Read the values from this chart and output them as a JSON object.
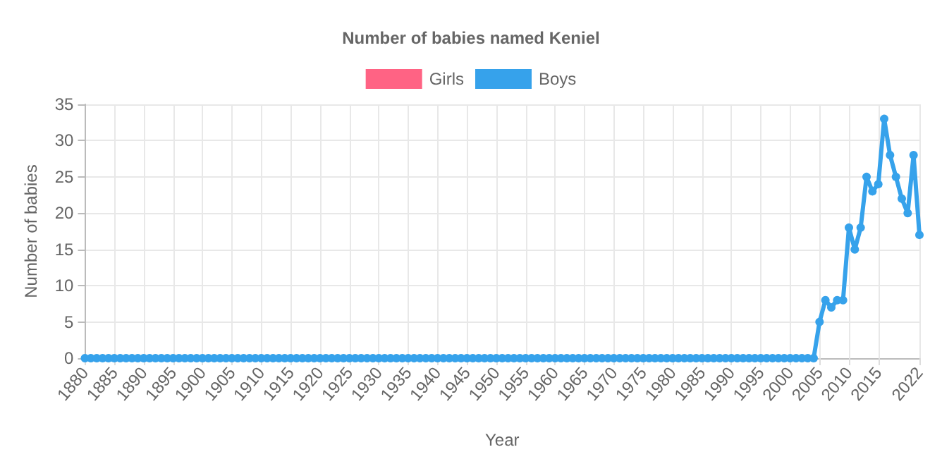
{
  "chart_data": {
    "type": "line",
    "title": "Number of babies named Keniel",
    "xlabel": "Year",
    "ylabel": "Number of babies",
    "categories": [
      "1880",
      null,
      null,
      null,
      null,
      "1885",
      null,
      null,
      null,
      null,
      "1890",
      null,
      null,
      null,
      null,
      "1895",
      null,
      null,
      null,
      null,
      "1900",
      null,
      null,
      null,
      null,
      "1905",
      null,
      null,
      null,
      null,
      "1910",
      null,
      null,
      null,
      null,
      "1915",
      null,
      null,
      null,
      null,
      "1920",
      null,
      null,
      null,
      null,
      "1925",
      null,
      null,
      null,
      null,
      "1930",
      null,
      null,
      null,
      null,
      "1935",
      null,
      null,
      null,
      null,
      "1940",
      null,
      null,
      null,
      null,
      "1945",
      null,
      null,
      null,
      null,
      "1950",
      null,
      null,
      null,
      null,
      "1955",
      null,
      null,
      null,
      null,
      "1960",
      null,
      null,
      null,
      null,
      "1965",
      null,
      null,
      null,
      null,
      "1970",
      null,
      null,
      null,
      null,
      "1975",
      null,
      null,
      null,
      null,
      "1980",
      null,
      null,
      null,
      null,
      "1985",
      null,
      null,
      null,
      null,
      "1990",
      null,
      null,
      null,
      null,
      "1995",
      null,
      null,
      null,
      null,
      "2000",
      null,
      null,
      null,
      null,
      "2005",
      null,
      null,
      null,
      null,
      "2010",
      null,
      null,
      null,
      null,
      "2015",
      null,
      null,
      null,
      null,
      null,
      null,
      "2022"
    ],
    "series": [
      {
        "name": "Girls",
        "color": "#ff6384",
        "values": [
          null,
          null,
          null,
          null,
          null,
          null,
          null,
          null,
          null,
          null,
          null,
          null,
          null,
          null,
          null,
          null,
          null,
          null,
          null,
          null,
          null,
          null,
          null,
          null,
          null,
          null,
          null,
          null,
          null,
          null,
          null,
          null,
          null,
          null,
          null,
          null,
          null,
          null,
          null,
          null,
          null,
          null,
          null,
          null,
          null,
          null,
          null,
          null,
          null,
          null,
          null,
          null,
          null,
          null,
          null,
          null,
          null,
          null,
          null,
          null,
          null,
          null,
          null,
          null,
          null,
          null,
          null,
          null,
          null,
          null,
          null,
          null,
          null,
          null,
          null,
          null,
          null,
          null,
          null,
          null,
          null,
          null,
          null,
          null,
          null,
          null,
          null,
          null,
          null,
          null,
          null,
          null,
          null,
          null,
          null,
          null,
          null,
          null,
          null,
          null,
          null,
          null,
          null,
          null,
          null,
          null,
          null,
          null,
          null,
          null,
          null,
          null,
          null,
          null,
          null,
          null,
          null,
          null,
          null,
          null,
          null,
          null,
          null,
          null,
          null,
          null,
          null,
          null,
          null,
          null,
          null,
          null,
          null,
          null,
          null,
          null,
          null,
          null,
          null,
          null,
          null,
          null,
          null
        ]
      },
      {
        "name": "Boys",
        "color": "#36a2eb",
        "values": [
          0,
          0,
          0,
          0,
          0,
          0,
          0,
          0,
          0,
          0,
          0,
          0,
          0,
          0,
          0,
          0,
          0,
          0,
          0,
          0,
          0,
          0,
          0,
          0,
          0,
          0,
          0,
          0,
          0,
          0,
          0,
          0,
          0,
          0,
          0,
          0,
          0,
          0,
          0,
          0,
          0,
          0,
          0,
          0,
          0,
          0,
          0,
          0,
          0,
          0,
          0,
          0,
          0,
          0,
          0,
          0,
          0,
          0,
          0,
          0,
          0,
          0,
          0,
          0,
          0,
          0,
          0,
          0,
          0,
          0,
          0,
          0,
          0,
          0,
          0,
          0,
          0,
          0,
          0,
          0,
          0,
          0,
          0,
          0,
          0,
          0,
          0,
          0,
          0,
          0,
          0,
          0,
          0,
          0,
          0,
          0,
          0,
          0,
          0,
          0,
          0,
          0,
          0,
          0,
          0,
          0,
          0,
          0,
          0,
          0,
          0,
          0,
          0,
          0,
          0,
          0,
          0,
          0,
          0,
          0,
          0,
          0,
          0,
          0,
          0,
          5,
          8,
          7,
          8,
          8,
          18,
          15,
          18,
          25,
          23,
          24,
          33,
          28,
          25,
          22,
          20,
          28,
          17
        ]
      }
    ],
    "ylim": [
      0,
      35
    ],
    "yticks": [
      0,
      5,
      10,
      15,
      20,
      25,
      30,
      35
    ],
    "grid": true,
    "legend": "top",
    "marker": "circle",
    "line_style": "solid"
  }
}
